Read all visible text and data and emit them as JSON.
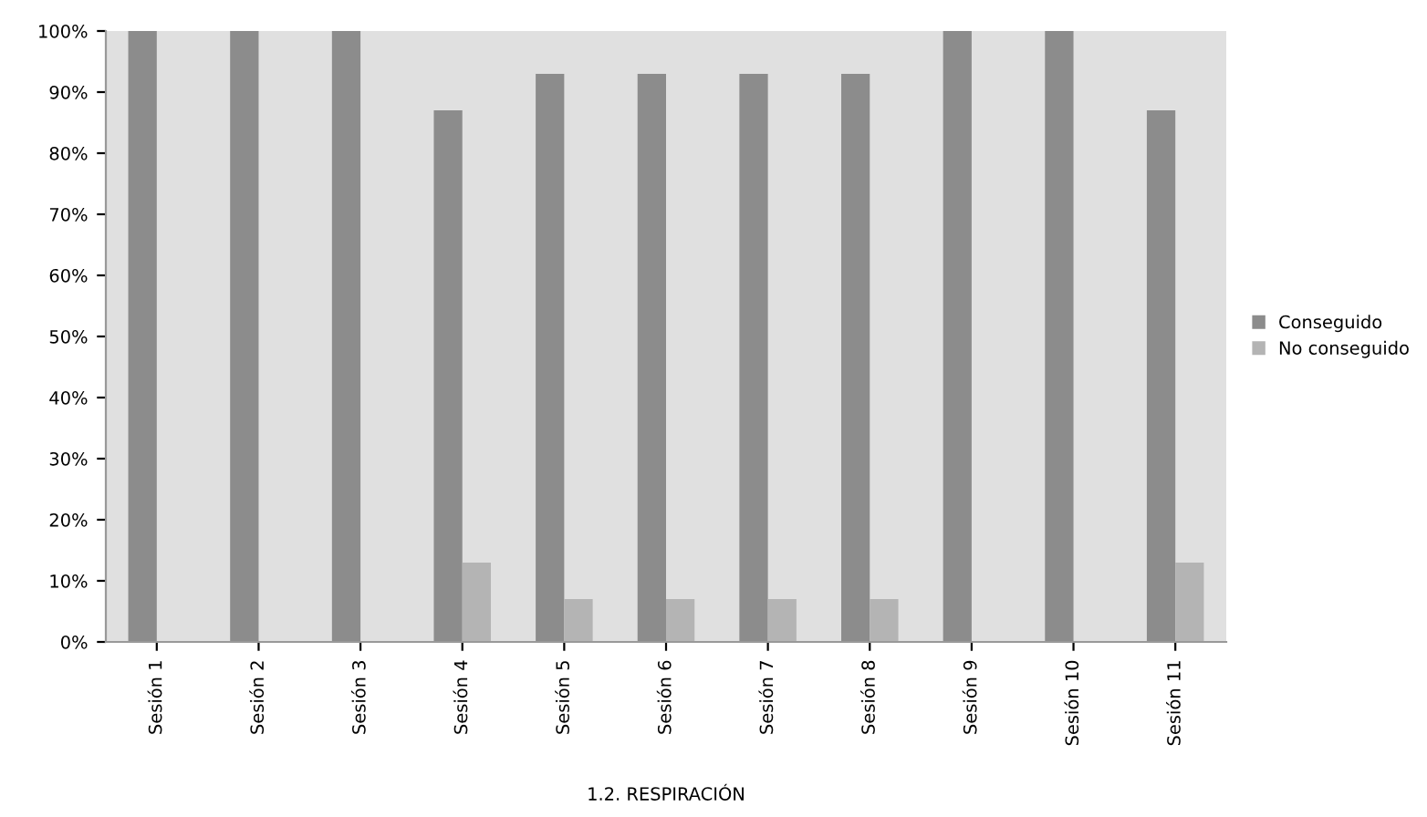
{
  "chart_data": {
    "type": "bar",
    "xlabel": "1.2. RESPIRACIÓN",
    "categories": [
      "Sesión 1",
      "Sesión 2",
      "Sesión 3",
      "Sesión 4",
      "Sesión 5",
      "Sesión 6",
      "Sesión 7",
      "Sesión 8",
      "Sesión 9",
      "Sesión 10",
      "Sesión 11"
    ],
    "series": [
      {
        "name": "Conseguido",
        "color": "#8c8c8c",
        "values": [
          100,
          100,
          100,
          87,
          93,
          93,
          93,
          93,
          100,
          100,
          87
        ]
      },
      {
        "name": "No conseguido",
        "color": "#b4b4b4",
        "values": [
          0,
          0,
          0,
          13,
          7,
          7,
          7,
          7,
          0,
          0,
          13
        ]
      }
    ],
    "ylim": [
      0,
      100
    ],
    "yticks": [
      {
        "value": 0,
        "label": "0%"
      },
      {
        "value": 10,
        "label": "10%"
      },
      {
        "value": 20,
        "label": "20%"
      },
      {
        "value": 30,
        "label": "30%"
      },
      {
        "value": 40,
        "label": "40%"
      },
      {
        "value": 50,
        "label": "50%"
      },
      {
        "value": 60,
        "label": "60%"
      },
      {
        "value": 70,
        "label": "70%"
      },
      {
        "value": 80,
        "label": "80%"
      },
      {
        "value": 90,
        "label": "90%"
      },
      {
        "value": 100,
        "label": "100%"
      }
    ],
    "grid": false,
    "legend": "right"
  }
}
